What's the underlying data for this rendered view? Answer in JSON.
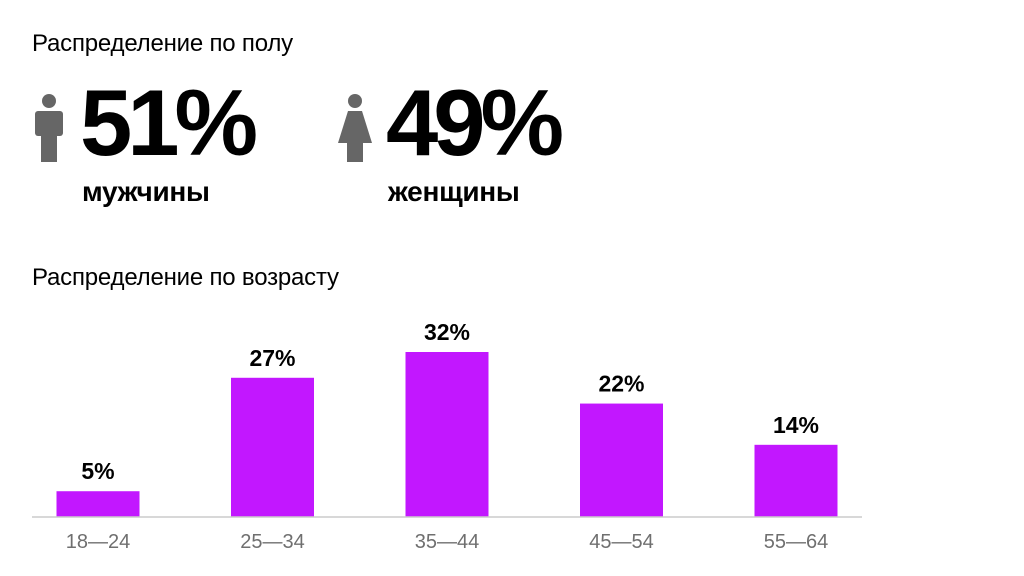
{
  "gender": {
    "title": "Распределение по полу",
    "male": {
      "percent": "51%",
      "label": "мужчины",
      "icon": "male-person-icon"
    },
    "female": {
      "percent": "49%",
      "label": "женщины",
      "icon": "female-person-icon"
    },
    "icon_color": "#666666"
  },
  "age": {
    "title": "Распределение по возрасту"
  },
  "chart_data": {
    "type": "bar",
    "categories": [
      "18—24",
      "25—34",
      "35—44",
      "45—54",
      "55—64"
    ],
    "values": [
      5,
      27,
      32,
      22,
      14
    ],
    "value_labels": [
      "5%",
      "27%",
      "32%",
      "22%",
      "14%"
    ],
    "bar_color": "#c217ff",
    "axis_color": "#cccccc",
    "ylim": [
      0,
      32
    ],
    "grid": false
  }
}
